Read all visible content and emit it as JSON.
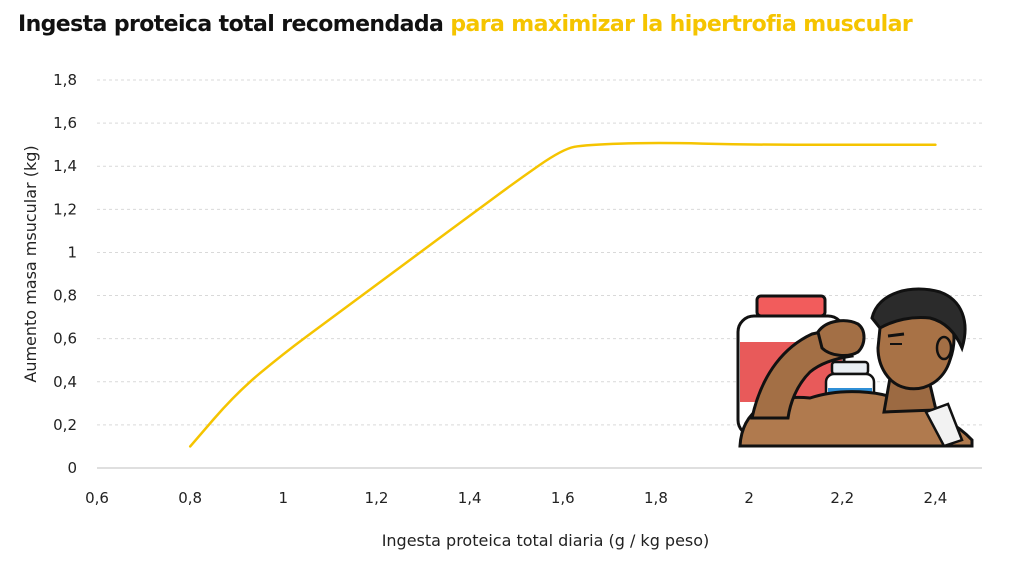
{
  "title": {
    "main": "Ingesta proteica total recomendada",
    "highlight": "para maximizar la hipertrofia muscular"
  },
  "colors": {
    "title_text": "#111111",
    "highlight": "#f5c400",
    "line": "#f5c400",
    "grid": "#d9d9d9"
  },
  "illustration": "muscular-man-with-protein-jars",
  "chart_data": {
    "type": "line",
    "xlabel": "Ingesta proteica total diaria (g / kg peso)",
    "ylabel": "Aumento masa msucular (kg)",
    "xlim": [
      0.6,
      2.5
    ],
    "ylim": [
      0,
      1.8
    ],
    "x_ticks": [
      0.6,
      0.8,
      1.0,
      1.2,
      1.4,
      1.6,
      1.8,
      2.0,
      2.2,
      2.4
    ],
    "x_tick_labels": [
      "0,6",
      "0,8",
      "1",
      "1,2",
      "1,4",
      "1,6",
      "1,8",
      "2",
      "2,2",
      "2,4"
    ],
    "y_ticks": [
      0,
      0.2,
      0.4,
      0.6,
      0.8,
      1.0,
      1.2,
      1.4,
      1.6,
      1.8
    ],
    "y_tick_labels": [
      "0",
      "0,2",
      "0,4",
      "0,6",
      "0,8",
      "1",
      "1,2",
      "1,4",
      "1,6",
      "1,8"
    ],
    "grid": "horizontal dashed",
    "series": [
      {
        "values_x": [
          0.8,
          0.9,
          1.0,
          1.1,
          1.2,
          1.3,
          1.4,
          1.5,
          1.6,
          1.65,
          1.8,
          2.0,
          2.2,
          2.4
        ],
        "values_y": [
          0.1,
          0.35,
          0.53,
          0.69,
          0.85,
          1.01,
          1.17,
          1.33,
          1.48,
          1.5,
          1.51,
          1.5,
          1.5,
          1.5
        ]
      }
    ]
  }
}
